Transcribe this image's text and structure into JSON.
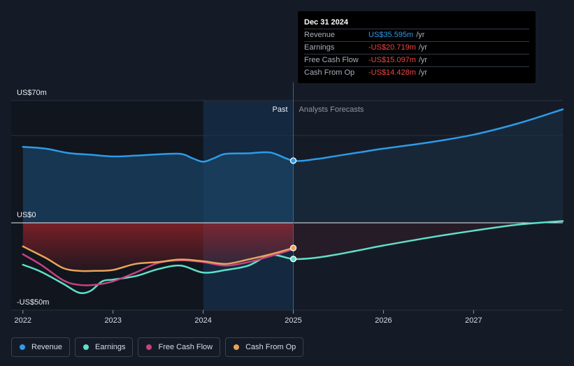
{
  "tooltip": {
    "date": "Dec 31 2024",
    "rows": [
      {
        "label": "Revenue",
        "value": "US$35.595m",
        "unit": "/yr",
        "color": "#2d9be8"
      },
      {
        "label": "Earnings",
        "value": "-US$20.719m",
        "unit": "/yr",
        "color": "#ef4444"
      },
      {
        "label": "Free Cash Flow",
        "value": "-US$15.097m",
        "unit": "/yr",
        "color": "#ef4444"
      },
      {
        "label": "Cash From Op",
        "value": "-US$14.428m",
        "unit": "/yr",
        "color": "#ef4444"
      }
    ]
  },
  "legend": [
    {
      "label": "Revenue",
      "color": "#2d9be8"
    },
    {
      "label": "Earnings",
      "color": "#5fe0c8"
    },
    {
      "label": "Free Cash Flow",
      "color": "#c8417f"
    },
    {
      "label": "Cash From Op",
      "color": "#e9a25a"
    }
  ],
  "chart_data": {
    "type": "line",
    "y_axis_labels": [
      "US$70m",
      "US$0",
      "-US$50m"
    ],
    "ylim": [
      -50,
      70
    ],
    "xlim": [
      2021.87,
      2027.99
    ],
    "x_ticks": [
      2022,
      2023,
      2024,
      2025,
      2026,
      2027
    ],
    "divider_x": 2025.0,
    "highlight_start_x": 2024.0,
    "past_label": "Past",
    "forecast_label": "Analysts Forecasts",
    "series": [
      {
        "name": "Revenue",
        "color": "#2d9be8",
        "area": true,
        "marker_at": 2025.0,
        "points": [
          [
            2022.0,
            43.5
          ],
          [
            2022.25,
            42.5
          ],
          [
            2022.5,
            40.0
          ],
          [
            2022.75,
            39.0
          ],
          [
            2023.0,
            38.0
          ],
          [
            2023.25,
            38.5
          ],
          [
            2023.5,
            39.2
          ],
          [
            2023.75,
            39.5
          ],
          [
            2023.88,
            37.0
          ],
          [
            2024.0,
            35.0
          ],
          [
            2024.12,
            37.0
          ],
          [
            2024.25,
            39.5
          ],
          [
            2024.5,
            39.8
          ],
          [
            2024.75,
            40.2
          ],
          [
            2025.0,
            35.6
          ],
          [
            2025.25,
            36.5
          ],
          [
            2025.5,
            38.5
          ],
          [
            2025.75,
            40.5
          ],
          [
            2026.0,
            42.5
          ],
          [
            2026.5,
            46.0
          ],
          [
            2027.0,
            50.5
          ],
          [
            2027.5,
            57.0
          ],
          [
            2027.99,
            65.0
          ]
        ]
      },
      {
        "name": "Earnings",
        "color": "#5fe0c8",
        "area": false,
        "marker_at": 2025.0,
        "points": [
          [
            2022.0,
            -24.0
          ],
          [
            2022.2,
            -28.0
          ],
          [
            2022.45,
            -35.0
          ],
          [
            2022.62,
            -40.0
          ],
          [
            2022.75,
            -39.0
          ],
          [
            2022.88,
            -33.5
          ],
          [
            2023.0,
            -32.5
          ],
          [
            2023.25,
            -30.5
          ],
          [
            2023.5,
            -26.5
          ],
          [
            2023.75,
            -24.5
          ],
          [
            2024.0,
            -28.5
          ],
          [
            2024.25,
            -27.0
          ],
          [
            2024.5,
            -24.5
          ],
          [
            2024.75,
            -18.5
          ],
          [
            2025.0,
            -20.7
          ],
          [
            2025.25,
            -20.0
          ],
          [
            2025.5,
            -18.0
          ],
          [
            2025.75,
            -15.5
          ],
          [
            2026.0,
            -13.0
          ],
          [
            2026.5,
            -8.5
          ],
          [
            2027.0,
            -4.5
          ],
          [
            2027.5,
            -1.0
          ],
          [
            2027.99,
            1.0
          ]
        ]
      },
      {
        "name": "Free Cash Flow",
        "color": "#c8417f",
        "area": false,
        "marker_at": null,
        "points": [
          [
            2022.0,
            -18.0
          ],
          [
            2022.2,
            -24.0
          ],
          [
            2022.45,
            -33.0
          ],
          [
            2022.62,
            -35.5
          ],
          [
            2022.8,
            -35.5
          ],
          [
            2023.0,
            -33.5
          ],
          [
            2023.25,
            -28.5
          ],
          [
            2023.5,
            -23.0
          ],
          [
            2023.75,
            -21.5
          ],
          [
            2024.0,
            -22.5
          ],
          [
            2024.25,
            -24.5
          ],
          [
            2024.5,
            -22.5
          ],
          [
            2024.75,
            -19.0
          ],
          [
            2025.0,
            -15.1
          ]
        ]
      },
      {
        "name": "Cash From Op",
        "color": "#e9a25a",
        "area": true,
        "marker_at": 2025.0,
        "points": [
          [
            2022.0,
            -13.5
          ],
          [
            2022.25,
            -20.0
          ],
          [
            2022.45,
            -26.0
          ],
          [
            2022.62,
            -27.5
          ],
          [
            2022.8,
            -27.5
          ],
          [
            2023.0,
            -27.0
          ],
          [
            2023.25,
            -23.5
          ],
          [
            2023.5,
            -22.5
          ],
          [
            2023.75,
            -21.0
          ],
          [
            2024.0,
            -22.0
          ],
          [
            2024.25,
            -23.5
          ],
          [
            2024.5,
            -21.0
          ],
          [
            2024.75,
            -18.0
          ],
          [
            2025.0,
            -14.4
          ]
        ]
      }
    ]
  }
}
